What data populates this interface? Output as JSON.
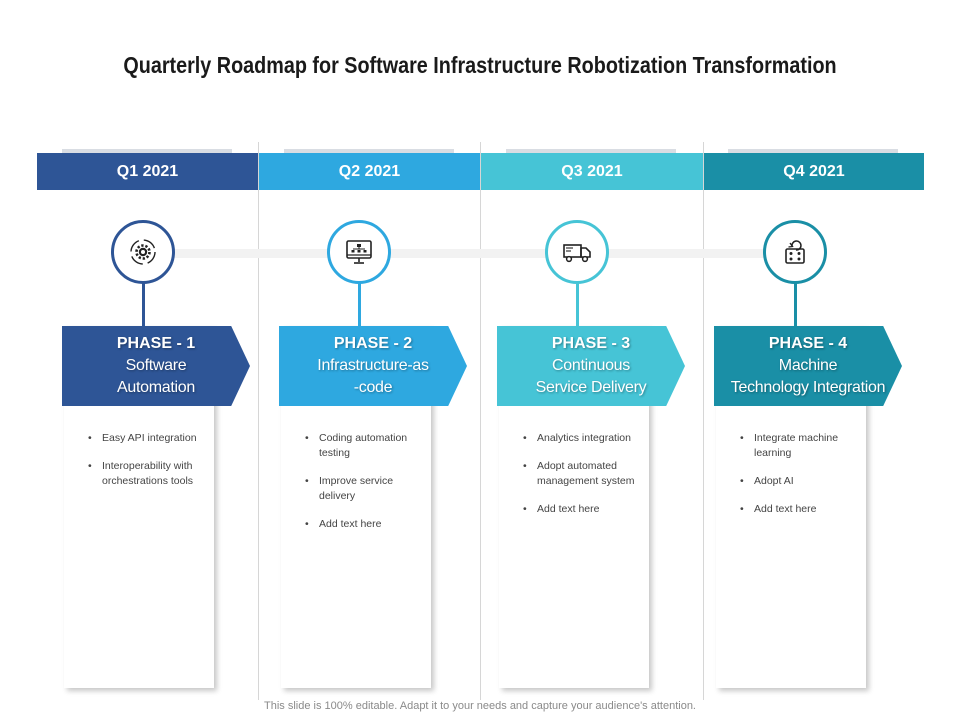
{
  "title": "Quarterly Roadmap for Software Infrastructure Robotization Transformation",
  "footer": "This slide is 100% editable. Adapt it to your needs and capture your audience's attention.",
  "colors": {
    "q1": "#2e5596",
    "q2": "#2ea8e0",
    "q3": "#46c4d6",
    "q4": "#1a8fa6"
  },
  "quarters": [
    {
      "label": "Q1 2021",
      "icon": "gear-cycle-icon",
      "phase_label": "PHASE - 1",
      "phase_name_1": "Software",
      "phase_name_2": "Automation",
      "bullets": [
        "Easy API integration",
        "Interoperability with orchestrations tools"
      ]
    },
    {
      "label": "Q2 2021",
      "icon": "monitor-network-icon",
      "phase_label": "PHASE - 2",
      "phase_name_1": "Infrastructure-as",
      "phase_name_2": "-code",
      "bullets": [
        "Coding automation testing",
        "Improve service delivery",
        "Add text here"
      ]
    },
    {
      "label": "Q3 2021",
      "icon": "delivery-truck-icon",
      "phase_label": "PHASE - 3",
      "phase_name_1": "Continuous",
      "phase_name_2": "Service Delivery",
      "bullets": [
        "Analytics  integration",
        "Adopt automated management system",
        "Add text here"
      ]
    },
    {
      "label": "Q4 2021",
      "icon": "machine-refresh-icon",
      "phase_label": "PHASE - 4",
      "phase_name_1": "Machine",
      "phase_name_2": "Technology Integration",
      "bullets": [
        "Integrate machine learning",
        "Adopt AI",
        "Add text here"
      ]
    }
  ]
}
